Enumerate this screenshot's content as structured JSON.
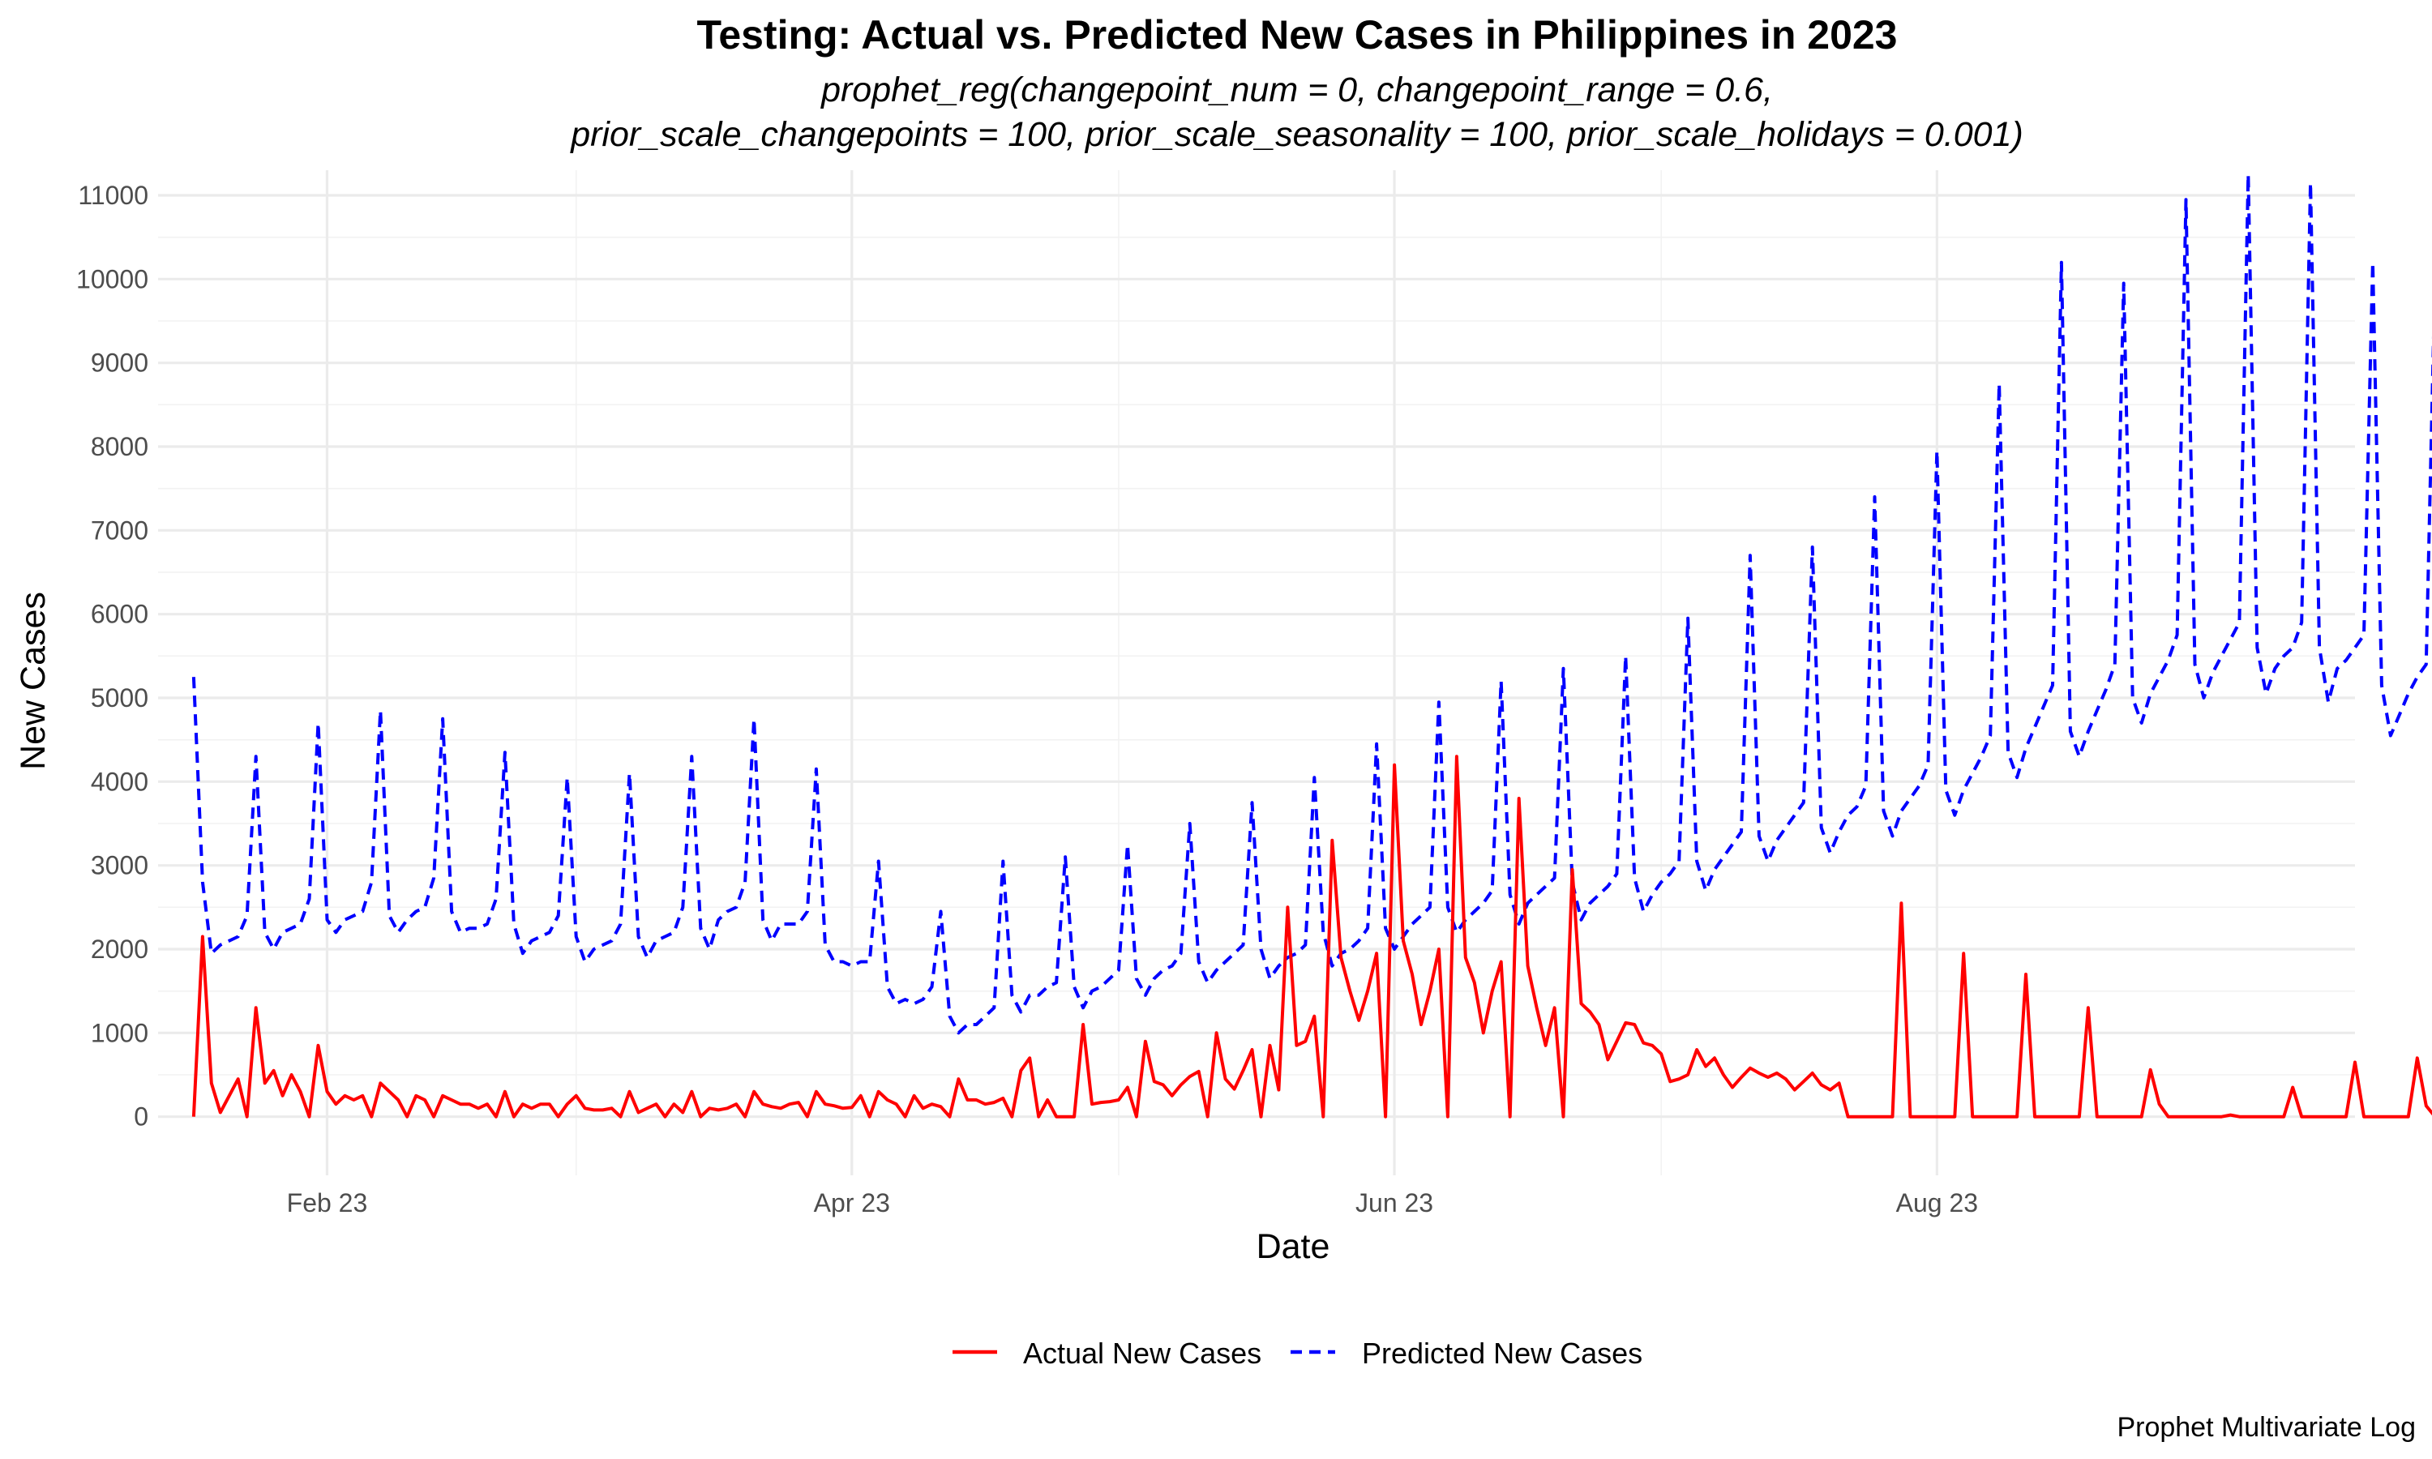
{
  "chart_data": {
    "type": "line",
    "title": "Testing: Actual vs. Predicted New Cases in Philippines in 2023",
    "subtitle_lines": [
      "prophet_reg(changepoint_num = 0, changepoint_range = 0.6,",
      "prior_scale_changepoints = 100, prior_scale_seasonality = 100, prior_scale_holidays = 0.001)"
    ],
    "xlabel": "Date",
    "ylabel": "New Cases",
    "caption": "Prophet Multivariate Log",
    "x_range": [
      "2023-01-13",
      "2023-09-17"
    ],
    "ylim": [
      -700,
      11300
    ],
    "y_ticks": [
      0,
      1000,
      2000,
      3000,
      4000,
      5000,
      6000,
      7000,
      8000,
      9000,
      10000,
      11000
    ],
    "x_ticks": [
      {
        "date": "2023-02-01",
        "label": "Feb 23"
      },
      {
        "date": "2023-04-01",
        "label": "Apr 23"
      },
      {
        "date": "2023-06-01",
        "label": "Jun 23"
      },
      {
        "date": "2023-08-01",
        "label": "Aug 23"
      }
    ],
    "x_minor_ticks": [
      "2023-03-01",
      "2023-05-01",
      "2023-07-01"
    ],
    "grid": true,
    "legend_position": "bottom",
    "start_date": "2023-01-17",
    "series": [
      {
        "name": "Actual New Cases",
        "color": "#ff0000",
        "dash": "solid",
        "values": [
          0,
          2150,
          400,
          50,
          250,
          450,
          0,
          1300,
          400,
          550,
          250,
          500,
          300,
          0,
          850,
          300,
          150,
          250,
          200,
          250,
          0,
          400,
          300,
          200,
          0,
          250,
          200,
          0,
          250,
          200,
          150,
          150,
          100,
          150,
          0,
          300,
          0,
          150,
          100,
          150,
          150,
          0,
          150,
          250,
          100,
          80,
          80,
          100,
          0,
          300,
          50,
          100,
          150,
          0,
          150,
          50,
          300,
          0,
          100,
          80,
          100,
          150,
          0,
          300,
          150,
          120,
          100,
          150,
          170,
          0,
          300,
          150,
          130,
          100,
          110,
          250,
          0,
          300,
          200,
          150,
          0,
          250,
          100,
          150,
          120,
          0,
          450,
          200,
          200,
          150,
          170,
          220,
          0,
          550,
          700,
          0,
          200,
          0,
          0,
          0,
          1100,
          150,
          170,
          180,
          200,
          350,
          0,
          900,
          420,
          380,
          250,
          380,
          480,
          540,
          0,
          1000,
          450,
          330,
          550,
          800,
          0,
          850,
          320,
          2500,
          850,
          900,
          1200,
          0,
          3300,
          1900,
          1500,
          1150,
          1500,
          1950,
          0,
          4200,
          2100,
          1700,
          1100,
          1500,
          2000,
          0,
          4300,
          1900,
          1600,
          1000,
          1500,
          1850,
          0,
          3800,
          1800,
          1300,
          850,
          1300,
          0,
          2950,
          1350,
          1250,
          1100,
          680,
          900,
          1120,
          1100,
          880,
          850,
          750,
          420,
          450,
          500,
          800,
          600,
          700,
          500,
          350,
          470,
          580,
          520,
          470,
          520,
          450,
          320,
          420,
          520,
          380,
          320,
          400,
          0,
          0,
          0,
          0,
          0,
          0,
          2550,
          0,
          0,
          0,
          0,
          0,
          0,
          1950,
          0,
          0,
          0,
          0,
          0,
          0,
          1700,
          0,
          0,
          0,
          0,
          0,
          0,
          1300,
          0,
          0,
          0,
          0,
          0,
          0,
          560,
          150,
          0,
          0,
          0,
          0,
          0,
          0,
          0,
          20,
          0,
          0,
          0,
          0,
          0,
          0,
          350,
          0,
          0,
          0,
          0,
          0,
          0,
          650,
          0,
          0,
          0,
          0,
          0,
          0,
          700,
          130,
          0,
          0,
          0,
          0,
          0,
          0,
          0,
          0,
          0,
          0,
          0,
          0
        ]
      },
      {
        "name": "Predicted New Cases",
        "color": "#0000ff",
        "dash": "dashed",
        "values": [
          5250,
          2800,
          1950,
          2050,
          2100,
          2150,
          2400,
          4300,
          2200,
          2000,
          2200,
          2250,
          2300,
          2600,
          4700,
          2350,
          2200,
          2350,
          2400,
          2450,
          2800,
          4850,
          2400,
          2200,
          2350,
          2450,
          2500,
          2850,
          4750,
          2450,
          2200,
          2250,
          2250,
          2300,
          2600,
          4350,
          2300,
          1950,
          2100,
          2150,
          2200,
          2400,
          4050,
          2150,
          1850,
          2000,
          2050,
          2100,
          2300,
          4100,
          2150,
          1900,
          2100,
          2150,
          2200,
          2500,
          4300,
          2250,
          2000,
          2350,
          2450,
          2500,
          2800,
          4750,
          2350,
          2100,
          2300,
          2300,
          2300,
          2450,
          4150,
          2050,
          1850,
          1850,
          1800,
          1850,
          1850,
          3050,
          1550,
          1350,
          1400,
          1350,
          1400,
          1550,
          2450,
          1200,
          1000,
          1100,
          1100,
          1200,
          1300,
          3050,
          1450,
          1250,
          1450,
          1450,
          1550,
          1600,
          3100,
          1550,
          1300,
          1500,
          1550,
          1650,
          1750,
          3250,
          1650,
          1450,
          1650,
          1750,
          1800,
          1950,
          3500,
          1850,
          1600,
          1750,
          1850,
          1950,
          2050,
          3750,
          2000,
          1650,
          1800,
          1900,
          1950,
          2050,
          4050,
          2200,
          1800,
          1950,
          2000,
          2100,
          2250,
          4450,
          2250,
          2000,
          2150,
          2300,
          2400,
          2500,
          4950,
          2500,
          2200,
          2350,
          2450,
          2550,
          2700,
          5200,
          2650,
          2300,
          2550,
          2650,
          2750,
          2850,
          5350,
          2800,
          2350,
          2550,
          2650,
          2750,
          2900,
          5500,
          2850,
          2450,
          2650,
          2800,
          2900,
          3050,
          5950,
          3050,
          2700,
          2950,
          3100,
          3250,
          3400,
          6700,
          3350,
          3050,
          3300,
          3450,
          3600,
          3750,
          6800,
          3450,
          3150,
          3400,
          3600,
          3700,
          3950,
          7400,
          3650,
          3350,
          3650,
          3800,
          3950,
          4200,
          7950,
          3900,
          3600,
          3900,
          4100,
          4300,
          4550,
          8750,
          4350,
          4050,
          4400,
          4650,
          4900,
          5150,
          10200,
          4600,
          4300,
          4600,
          4850,
          5100,
          5400,
          9950,
          5000,
          4700,
          5050,
          5250,
          5450,
          5750,
          10950,
          5400,
          5000,
          5300,
          5500,
          5700,
          5900,
          11250,
          5600,
          5050,
          5350,
          5500,
          5600,
          5900,
          11150,
          5600,
          4950,
          5350,
          5450,
          5600,
          5750,
          10200,
          5150,
          4550,
          4800,
          5050,
          5250,
          5400,
          10050,
          5100,
          4500,
          5000
        ]
      }
    ]
  }
}
